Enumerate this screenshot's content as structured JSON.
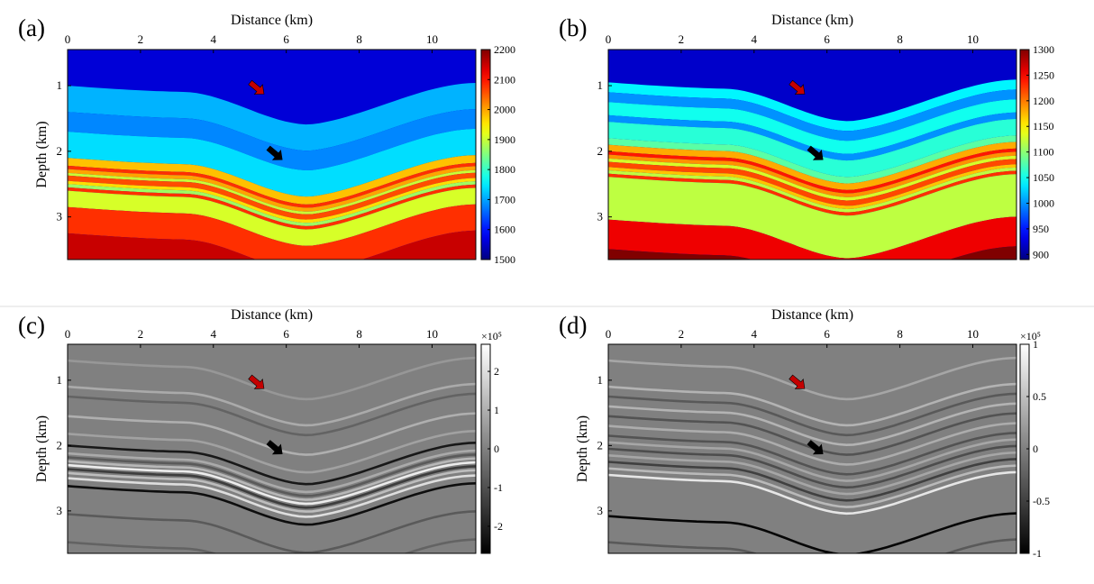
{
  "figure": {
    "separator": true
  },
  "chart_data": [
    {
      "type": "heatmap",
      "panel_label": "(a)",
      "xlabel": "Distance (km)",
      "ylabel": "Depth (km)",
      "xlim": [
        0,
        11.2
      ],
      "ylim": [
        3.65,
        0.45
      ],
      "xticks": [
        0,
        2,
        4,
        6,
        8,
        10
      ],
      "yticks": [
        1,
        2,
        3
      ],
      "colormap": "jet",
      "clim": [
        1500,
        2200
      ],
      "colorbar_ticks": [
        1500,
        1600,
        1700,
        1800,
        1900,
        2000,
        2100,
        2200
      ],
      "colorbar_exponent": "",
      "layers": [
        {
          "value": 1560,
          "thickness": 0.6
        },
        {
          "value": 1710,
          "thickness": 0.4
        },
        {
          "value": 1680,
          "thickness": 0.3
        },
        {
          "value": 1740,
          "thickness": 0.4
        },
        {
          "value": 1980,
          "thickness": 0.12
        },
        {
          "value": 2080,
          "thickness": 0.05
        },
        {
          "value": 2000,
          "thickness": 0.06
        },
        {
          "value": 1900,
          "thickness": 0.04
        },
        {
          "value": 2060,
          "thickness": 0.08
        },
        {
          "value": 1960,
          "thickness": 0.05
        },
        {
          "value": 1870,
          "thickness": 0.05
        },
        {
          "value": 2080,
          "thickness": 0.05
        },
        {
          "value": 1910,
          "thickness": 0.25
        },
        {
          "value": 2080,
          "thickness": 0.4
        },
        {
          "value": 2150,
          "thickness": 0.45
        },
        {
          "value": 2200,
          "thickness": 0.4
        }
      ],
      "arrows": [
        {
          "color": "#c40000",
          "x": 5.2,
          "y": 1.04
        },
        {
          "color": "#000000",
          "x": 5.7,
          "y": 2.04
        }
      ]
    },
    {
      "type": "heatmap",
      "panel_label": "(b)",
      "xlabel": "Distance (km)",
      "ylabel": "",
      "xlim": [
        0,
        11.2
      ],
      "ylim": [
        3.65,
        0.45
      ],
      "xticks": [
        0,
        2,
        4,
        6,
        8,
        10
      ],
      "yticks": [
        1,
        2,
        3
      ],
      "colormap": "jet",
      "clim": [
        890,
        1300
      ],
      "colorbar_ticks": [
        900,
        950,
        1000,
        1050,
        1100,
        1150,
        1200,
        1250,
        1300
      ],
      "colorbar_exponent": "",
      "layers": [
        {
          "value": 920,
          "thickness": 0.55
        },
        {
          "value": 1040,
          "thickness": 0.15
        },
        {
          "value": 1000,
          "thickness": 0.15
        },
        {
          "value": 1050,
          "thickness": 0.2
        },
        {
          "value": 1000,
          "thickness": 0.1
        },
        {
          "value": 1060,
          "thickness": 0.25
        },
        {
          "value": 1080,
          "thickness": 0.1
        },
        {
          "value": 1180,
          "thickness": 0.1
        },
        {
          "value": 1240,
          "thickness": 0.05
        },
        {
          "value": 1190,
          "thickness": 0.06
        },
        {
          "value": 1130,
          "thickness": 0.05
        },
        {
          "value": 1220,
          "thickness": 0.08
        },
        {
          "value": 1170,
          "thickness": 0.05
        },
        {
          "value": 1120,
          "thickness": 0.05
        },
        {
          "value": 1230,
          "thickness": 0.05
        },
        {
          "value": 1120,
          "thickness": 0.65
        },
        {
          "value": 1255,
          "thickness": 0.45
        },
        {
          "value": 1300,
          "thickness": 0.4
        }
      ],
      "arrows": [
        {
          "color": "#c40000",
          "x": 5.2,
          "y": 1.04
        },
        {
          "color": "#000000",
          "x": 5.7,
          "y": 2.04
        }
      ]
    },
    {
      "type": "heatmap",
      "panel_label": "(c)",
      "xlabel": "Distance (km)",
      "ylabel": "Depth (km)",
      "xlim": [
        0,
        11.2
      ],
      "ylim": [
        3.65,
        0.45
      ],
      "xticks": [
        0,
        2,
        4,
        6,
        8,
        10
      ],
      "yticks": [
        1,
        2,
        3
      ],
      "colormap": "gray",
      "clim": [
        -2.7,
        2.7
      ],
      "colorbar_ticks": [
        -2,
        -1,
        0,
        1,
        2
      ],
      "colorbar_exponent": "×10⁵",
      "reflectors": [
        {
          "depth": 0.7,
          "amp": 0.5
        },
        {
          "depth": 1.1,
          "amp": 0.9
        },
        {
          "depth": 1.25,
          "amp": -0.6
        },
        {
          "depth": 1.55,
          "amp": 1.0
        },
        {
          "depth": 1.82,
          "amp": 0.7
        },
        {
          "depth": 2.0,
          "amp": -2.2
        },
        {
          "depth": 2.12,
          "amp": 0.9
        },
        {
          "depth": 2.18,
          "amp": -0.8
        },
        {
          "depth": 2.24,
          "amp": 1.2
        },
        {
          "depth": 2.3,
          "amp": 2.3
        },
        {
          "depth": 2.36,
          "amp": -1.4
        },
        {
          "depth": 2.42,
          "amp": 1.3
        },
        {
          "depth": 2.5,
          "amp": 2.0
        },
        {
          "depth": 2.62,
          "amp": -2.4
        },
        {
          "depth": 3.05,
          "amp": -0.8
        },
        {
          "depth": 3.48,
          "amp": -0.6
        }
      ],
      "arrows": [
        {
          "color": "#c40000",
          "x": 5.2,
          "y": 1.04
        },
        {
          "color": "#000000",
          "x": 5.7,
          "y": 2.04
        }
      ]
    },
    {
      "type": "heatmap",
      "panel_label": "(d)",
      "xlabel": "Distance (km)",
      "ylabel": "Depth (km)",
      "xlim": [
        0,
        11.2
      ],
      "ylim": [
        3.65,
        0.45
      ],
      "xticks": [
        0,
        2,
        4,
        6,
        8,
        10
      ],
      "yticks": [
        1,
        2,
        3
      ],
      "colormap": "gray",
      "clim": [
        -1,
        1
      ],
      "colorbar_ticks": [
        -1,
        -0.5,
        0,
        0.5,
        1
      ],
      "colorbar_exponent": "×10⁵",
      "reflectors": [
        {
          "depth": 0.7,
          "amp": 0.3
        },
        {
          "depth": 1.1,
          "amp": 0.4
        },
        {
          "depth": 1.25,
          "amp": -0.3
        },
        {
          "depth": 1.4,
          "amp": 0.4
        },
        {
          "depth": 1.55,
          "amp": -0.35
        },
        {
          "depth": 1.7,
          "amp": 0.35
        },
        {
          "depth": 1.85,
          "amp": -0.35
        },
        {
          "depth": 1.95,
          "amp": 0.3
        },
        {
          "depth": 2.05,
          "amp": -0.4
        },
        {
          "depth": 2.15,
          "amp": 0.3
        },
        {
          "depth": 2.25,
          "amp": -0.5
        },
        {
          "depth": 2.35,
          "amp": 0.45
        },
        {
          "depth": 2.45,
          "amp": 0.8
        },
        {
          "depth": 3.08,
          "amp": -0.95
        },
        {
          "depth": 3.48,
          "amp": -0.3
        }
      ],
      "arrows": [
        {
          "color": "#c40000",
          "x": 5.2,
          "y": 1.04
        },
        {
          "color": "#000000",
          "x": 5.7,
          "y": 2.04
        }
      ]
    }
  ]
}
